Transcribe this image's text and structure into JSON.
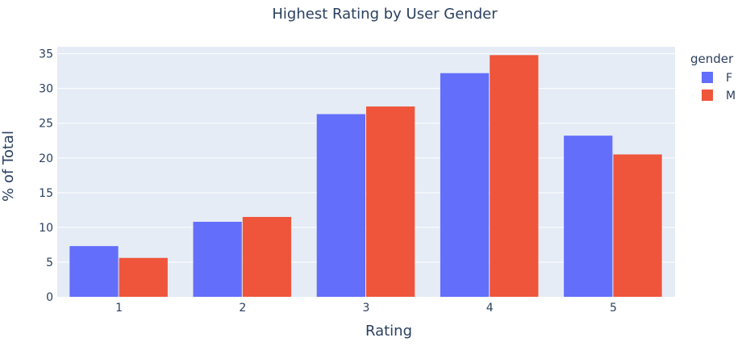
{
  "chart_data": {
    "type": "bar",
    "title": "Highest Rating by User Gender",
    "xlabel": "Rating",
    "ylabel": "% of Total",
    "categories": [
      "1",
      "2",
      "3",
      "4",
      "5"
    ],
    "series": [
      {
        "name": "F",
        "color": "#636efa",
        "values": [
          7.3,
          10.8,
          26.3,
          32.2,
          23.2
        ]
      },
      {
        "name": "M",
        "color": "#ef553b",
        "values": [
          5.6,
          11.5,
          27.4,
          34.8,
          20.5
        ]
      }
    ],
    "ylim": [
      0,
      36
    ],
    "yticks": [
      0,
      5,
      10,
      15,
      20,
      25,
      30,
      35
    ],
    "legend": {
      "title": "gender",
      "placement": "right"
    },
    "grid": true,
    "plot_bg": "#e5ecf6"
  }
}
